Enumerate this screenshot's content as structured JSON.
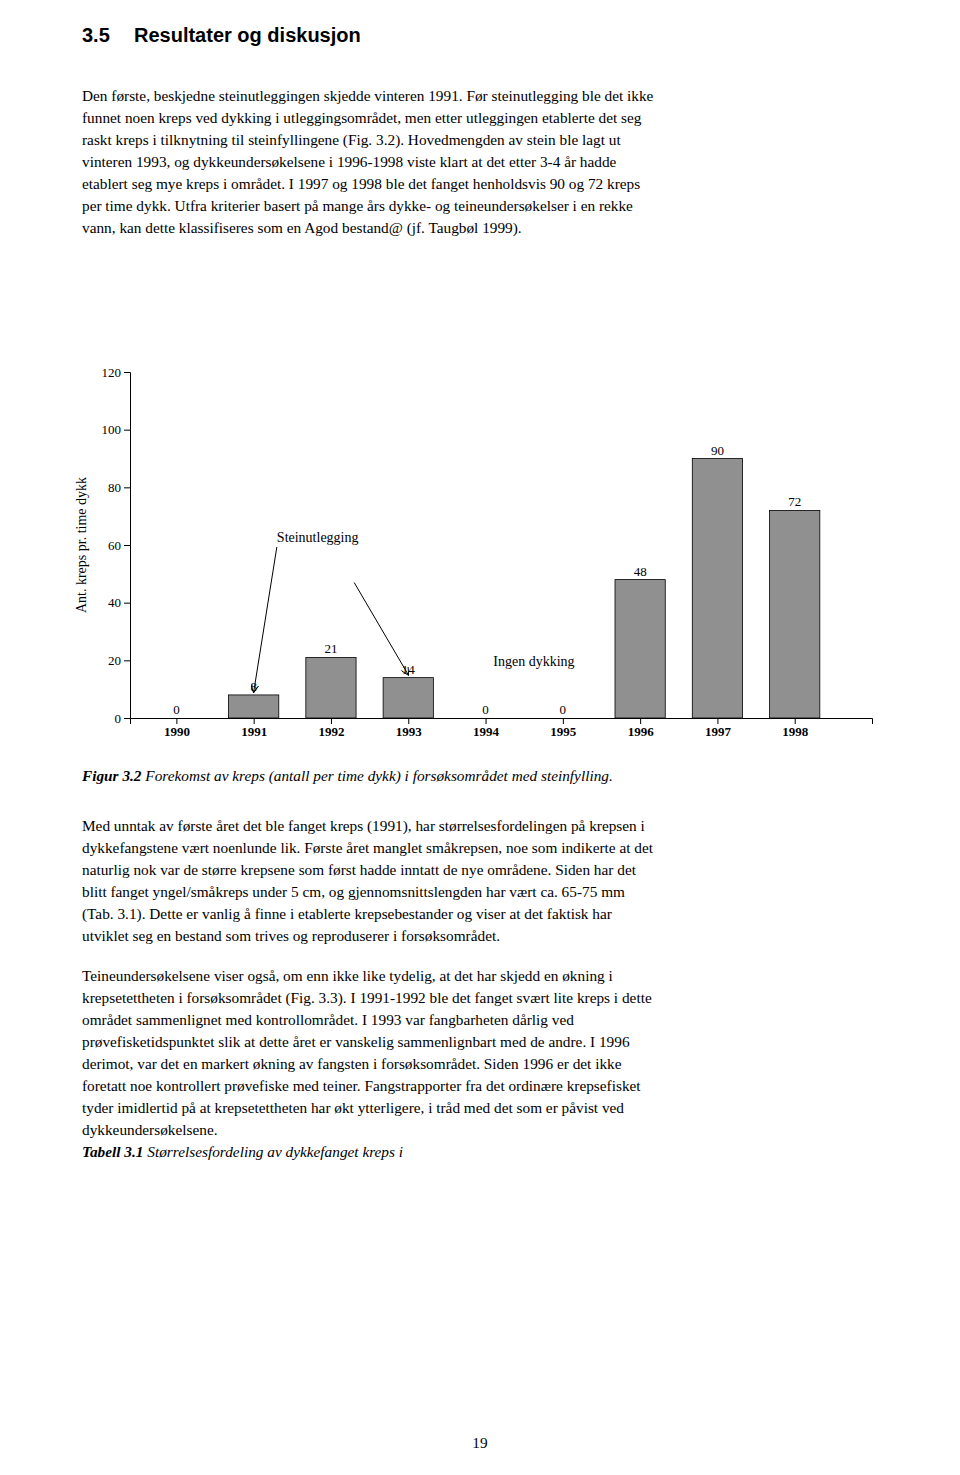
{
  "section_num": "3.5",
  "section_title": "Resultater og diskusjon",
  "para1_lines": [
    "Den første, beskjedne steinutleggingen skjedde vinteren 1991. Før steinutlegging ble det ikke",
    "funnet noen kreps ved dykking i utleggingsområdet, men etter utleggingen etablerte det seg",
    "raskt kreps i tilknytning til steinfyllingene (Fig. 3.2). Hovedmengden av stein ble lagt ut",
    "vinteren 1993, og dykkeundersøkelsene i 1996-1998 viste klart at det etter 3-4 år hadde",
    "etablert seg mye kreps i området. I 1997 og 1998 ble det fanget henholdsvis 90 og 72 kreps",
    "per time dykk. Utfra kriterier basert på mange års dykke- og teineundersøkelser i en rekke",
    "vann, kan dette klassifiseres som en Agod bestand@ (jf. Taugbøl 1999)."
  ],
  "caption_bold": "Figur 3.2",
  "caption_italic": " Forekomst av kreps (antall per time dykk) i forsøksområdet med steinfylling.",
  "para2_lines": [
    "Med unntak av første året det ble fanget kreps (1991), har størrelsesfordelingen på krepsen i",
    "dykkefangstene vært noenlunde lik. Første året manglet småkrepsen, noe som indikerte at det",
    "naturlig nok var de større krepsene som først hadde inntatt de nye områdene. Siden har det",
    "blitt fanget yngel/småkreps under 5 cm, og gjennomsnittslengden har vært ca. 65-75 mm",
    "(Tab. 3.1). Dette er vanlig å finne i etablerte krepsebestander og viser at det faktisk har",
    "utviklet seg en bestand som trives og reproduserer i forsøksområdet."
  ],
  "para3_lines": [
    "Teineundersøkelsene viser også, om enn ikke like tydelig, at det har skjedd en økning i",
    "krepsetettheten i forsøksområdet (Fig. 3.3). I 1991-1992 ble det fanget svært lite kreps i dette",
    "området sammenlignet med kontrollområdet. I 1993 var fangbarheten dårlig ved",
    "prøvefisketidspunktet slik at dette året er vanskelig sammenlignbart med de andre. I 1996",
    "derimot, var det en markert økning av fangsten i forsøksområdet. Siden 1996 er det ikke",
    "foretatt noe kontrollert prøvefiske med teiner. Fangstrapporter fra det ordinære krepsefisket",
    "tyder imidlertid på at krepsetettheten har økt ytterligere, i tråd med det som er påvist ved",
    "dykkeundersøkelsene."
  ],
  "tabell_bold": "Tabell 3.1",
  "tabell_italic": " Størrelsesfordeling av dykkefanget kreps i",
  "page_number": "19",
  "chart_data": {
    "type": "bar",
    "x": [
      1990,
      1991,
      1992,
      1993,
      1994,
      1995,
      1996,
      1997,
      1998
    ],
    "values": [
      0,
      8,
      21,
      14,
      0,
      0,
      48,
      90,
      72
    ],
    "color": "#909090",
    "ylabel": "Ant. kreps pr. time dykk",
    "xlim": [
      1989.4,
      1999.0
    ],
    "xticks": [
      1990,
      1991,
      1992,
      1993,
      1994,
      1995,
      1996,
      1997,
      1998
    ],
    "ylim": [
      0,
      120
    ],
    "yticks": [
      0,
      20,
      40,
      60,
      80,
      100,
      120
    ],
    "data_labels": true,
    "annotations": [
      {
        "text": "Steinutlegging",
        "x": 1991.3,
        "y": 60,
        "arrows": [
          {
            "x": 1991.0,
            "y": 9
          },
          {
            "x_from": 1992.3,
            "y_from": 47,
            "x": 1993.0,
            "y": 15
          }
        ]
      },
      {
        "text": "Ingen dykking",
        "x": 1994.1,
        "y": 17
      }
    ]
  }
}
